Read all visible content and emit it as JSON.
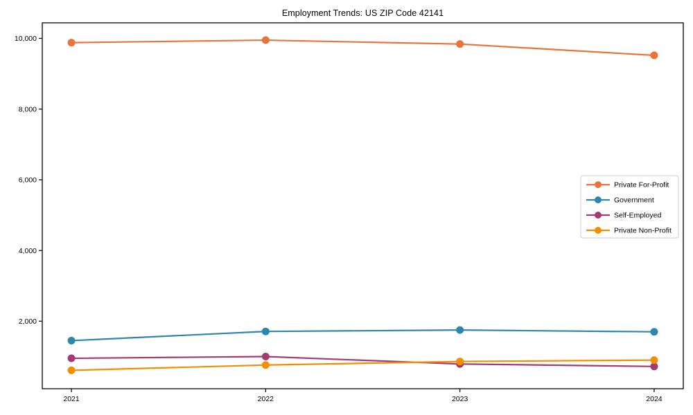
{
  "chart_data": {
    "type": "line",
    "title": "Employment Trends: US ZIP Code 42141",
    "xlabel": "",
    "ylabel": "",
    "x": [
      2021,
      2022,
      2023,
      2024
    ],
    "x_tick_labels": [
      "2021",
      "2022",
      "2023",
      "2024"
    ],
    "xlim": [
      2020.85,
      2024.15
    ],
    "ylim": [
      90,
      10440
    ],
    "yticks": [
      2000,
      4000,
      6000,
      8000,
      10000
    ],
    "ytick_labels": [
      "2,000",
      "4,000",
      "6,000",
      "8,000",
      "10,000"
    ],
    "grid": false,
    "background": "#ffffff",
    "axis_color": "#000000",
    "marker": "o",
    "legend": {
      "position": "center-right",
      "background": "#ffffff",
      "border_color": "#cccccc",
      "entries": [
        "Private For-Profit",
        "Government",
        "Self-Employed",
        "Private Non-Profit"
      ]
    },
    "series": [
      {
        "name": "Private For-Profit",
        "color": "#E8743B",
        "values": [
          9880,
          9950,
          9840,
          9520
        ]
      },
      {
        "name": "Government",
        "color": "#2E86AB",
        "values": [
          1450,
          1710,
          1750,
          1700
        ]
      },
      {
        "name": "Self-Employed",
        "color": "#A23B72",
        "values": [
          950,
          1000,
          790,
          720
        ]
      },
      {
        "name": "Private Non-Profit",
        "color": "#F18F01",
        "values": [
          610,
          760,
          860,
          900
        ]
      }
    ]
  }
}
